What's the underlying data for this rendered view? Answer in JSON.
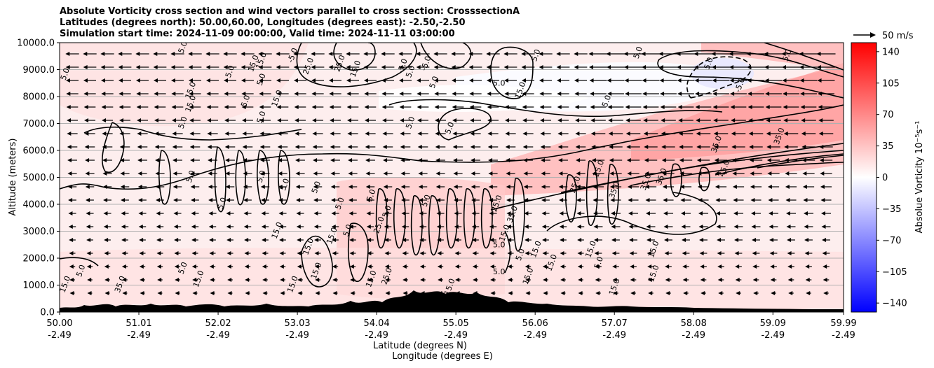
{
  "title_lines": [
    "Absolute Vorticity cross section and wind vectors parallel to cross section: CrosssectionA",
    "Latitudes (degrees north): 50.00,60.00, Longitudes (degrees east): -2.50,-2.50",
    "Simulation start time: 2024-11-09 00:00:00, Valid time: 2024-11-11 03:00:00"
  ],
  "quiver_key": {
    "label": "50 m/s",
    "speed": 50
  },
  "colors": {
    "positive": "#ff0000",
    "negative": "#0000ff",
    "neutral": "#ffffff",
    "contour": "#000000",
    "grid": "#b0b0b0",
    "terrain": "#000000"
  },
  "chart_data": {
    "type": "heatmap",
    "ylabel": "Altitude (meters)",
    "xlabel_lines": [
      "Latitude (degrees N)",
      "Longitude (degrees E)"
    ],
    "ylim": [
      0,
      10000
    ],
    "yticks": [
      "0.0",
      "1000.0",
      "2000.0",
      "3000.0",
      "4000.0",
      "5000.0",
      "6000.0",
      "7000.0",
      "8000.0",
      "9000.0",
      "10000.0"
    ],
    "ytick_values": [
      0,
      1000,
      2000,
      3000,
      4000,
      5000,
      6000,
      7000,
      8000,
      9000,
      10000
    ],
    "xlim": [
      50.0,
      59.99
    ],
    "xticks_lat": [
      "50.00",
      "51.01",
      "52.02",
      "53.03",
      "54.04",
      "55.05",
      "56.06",
      "57.07",
      "58.08",
      "59.09",
      "59.99"
    ],
    "xtick_values": [
      50.0,
      51.01,
      52.02,
      53.03,
      54.04,
      55.05,
      56.06,
      57.07,
      58.08,
      59.09,
      59.99
    ],
    "xticks_lon": [
      "-2.49",
      "-2.49",
      "-2.49",
      "-2.49",
      "-2.49",
      "-2.49",
      "-2.49",
      "-2.49",
      "-2.49",
      "-2.49",
      "-2.49"
    ],
    "grid": "horizontal",
    "colorbar": {
      "label": "Absolue Vorticity 10⁻⁵s⁻¹",
      "range": [
        -150,
        150
      ],
      "ticks": [
        "140",
        "105",
        "70",
        "35",
        "0",
        "−35",
        "−70",
        "−105",
        "−140"
      ],
      "tick_values": [
        140,
        105,
        70,
        35,
        0,
        -35,
        -70,
        -105,
        -140
      ]
    },
    "contour_labels": [
      {
        "text": "5.0",
        "lat": 51.6,
        "alt": 9800
      },
      {
        "text": "5.0",
        "lat": 50.1,
        "alt": 8800
      },
      {
        "text": "15.0",
        "lat": 51.7,
        "alt": 8200
      },
      {
        "text": "15.0",
        "lat": 51.7,
        "alt": 7700
      },
      {
        "text": "5.0",
        "lat": 52.2,
        "alt": 8900
      },
      {
        "text": "5.0",
        "lat": 52.4,
        "alt": 7800
      },
      {
        "text": "5.0",
        "lat": 51.6,
        "alt": 7000
      },
      {
        "text": "15.0",
        "lat": 52.5,
        "alt": 9200
      },
      {
        "text": "5.0",
        "lat": 52.6,
        "alt": 8600
      },
      {
        "text": "15.0",
        "lat": 52.8,
        "alt": 7900
      },
      {
        "text": "5.0",
        "lat": 52.6,
        "alt": 7200
      },
      {
        "text": "25.0",
        "lat": 53.2,
        "alt": 9100
      },
      {
        "text": "15.0",
        "lat": 53.8,
        "alt": 9000
      },
      {
        "text": "25.0",
        "lat": 53.6,
        "alt": 9200
      },
      {
        "text": "-5.0",
        "lat": 53.0,
        "alt": 9500
      },
      {
        "text": "15.0",
        "lat": 52.6,
        "alt": 9300
      },
      {
        "text": "-5.0",
        "lat": 54.4,
        "alt": 9100
      },
      {
        "text": "5.0",
        "lat": 54.5,
        "alt": 8900
      },
      {
        "text": "-5.0",
        "lat": 54.7,
        "alt": 9200
      },
      {
        "text": "5.0",
        "lat": 54.8,
        "alt": 8500
      },
      {
        "text": "5.0",
        "lat": 54.5,
        "alt": 7000
      },
      {
        "text": "5.0",
        "lat": 55.0,
        "alt": 6800
      },
      {
        "text": "5.0",
        "lat": 55.6,
        "alt": 8400
      },
      {
        "text": "15.0",
        "lat": 55.9,
        "alt": 8200
      },
      {
        "text": "5.0",
        "lat": 56.1,
        "alt": 9500
      },
      {
        "text": "5.0",
        "lat": 57.0,
        "alt": 7800
      },
      {
        "text": "5.0",
        "lat": 57.4,
        "alt": 9600
      },
      {
        "text": "5.0",
        "lat": 58.3,
        "alt": 9200
      },
      {
        "text": "-5.0",
        "lat": 58.7,
        "alt": 8400
      },
      {
        "text": "5.0",
        "lat": 59.3,
        "alt": 9500
      },
      {
        "text": "35.0",
        "lat": 58.4,
        "alt": 6200
      },
      {
        "text": "35.0",
        "lat": 59.2,
        "alt": 6500
      },
      {
        "text": "45.0",
        "lat": 58.5,
        "alt": 5300
      },
      {
        "text": "35.0",
        "lat": 57.7,
        "alt": 5000
      },
      {
        "text": "25.0",
        "lat": 56.9,
        "alt": 5300
      },
      {
        "text": "35.0",
        "lat": 57.5,
        "alt": 4800
      },
      {
        "text": "35.0",
        "lat": 57.1,
        "alt": 4500
      },
      {
        "text": "25.0",
        "lat": 56.6,
        "alt": 4700
      },
      {
        "text": "5.0",
        "lat": 52.6,
        "alt": 5000
      },
      {
        "text": "5.0",
        "lat": 51.7,
        "alt": 5000
      },
      {
        "text": "5.0",
        "lat": 52.1,
        "alt": 4000
      },
      {
        "text": "5.0",
        "lat": 52.9,
        "alt": 4700
      },
      {
        "text": "5.0",
        "lat": 53.3,
        "alt": 4600
      },
      {
        "text": "5.0",
        "lat": 53.6,
        "alt": 4000
      },
      {
        "text": "5.0",
        "lat": 54.0,
        "alt": 4300
      },
      {
        "text": "5.0",
        "lat": 53.7,
        "alt": 3000
      },
      {
        "text": "15.0",
        "lat": 52.8,
        "alt": 3000
      },
      {
        "text": "15.0",
        "lat": 53.2,
        "alt": 2400
      },
      {
        "text": "15.0",
        "lat": 53.5,
        "alt": 2800
      },
      {
        "text": "15.0",
        "lat": 53.3,
        "alt": 1500
      },
      {
        "text": "15.0",
        "lat": 53.0,
        "alt": 1000
      },
      {
        "text": "5.0",
        "lat": 54.2,
        "alt": 3700
      },
      {
        "text": "25.0",
        "lat": 54.1,
        "alt": 3200
      },
      {
        "text": "5.0",
        "lat": 54.7,
        "alt": 4100
      },
      {
        "text": "35.0",
        "lat": 55.8,
        "alt": 3600
      },
      {
        "text": "25.0",
        "lat": 55.6,
        "alt": 4000
      },
      {
        "text": "15.0",
        "lat": 55.7,
        "alt": 2900
      },
      {
        "text": "5.0",
        "lat": 55.6,
        "alt": 2400
      },
      {
        "text": "15.0",
        "lat": 56.1,
        "alt": 2300
      },
      {
        "text": "15.0",
        "lat": 56.3,
        "alt": 1800
      },
      {
        "text": "5.0",
        "lat": 55.9,
        "alt": 2100
      },
      {
        "text": "15.0",
        "lat": 56.8,
        "alt": 2300
      },
      {
        "text": "15.0",
        "lat": 57.6,
        "alt": 2300
      },
      {
        "text": "5.0",
        "lat": 51.6,
        "alt": 1600
      },
      {
        "text": "5.0",
        "lat": 50.3,
        "alt": 1500
      },
      {
        "text": "15.0",
        "lat": 50.1,
        "alt": 1000
      },
      {
        "text": "35.0",
        "lat": 50.8,
        "alt": 1000
      },
      {
        "text": "15.0",
        "lat": 51.8,
        "alt": 1200
      },
      {
        "text": "15.0",
        "lat": 54.0,
        "alt": 1200
      },
      {
        "text": "25.0",
        "lat": 54.2,
        "alt": 1300
      },
      {
        "text": "15.0",
        "lat": 55.0,
        "alt": 900
      },
      {
        "text": "15.0",
        "lat": 56.0,
        "alt": 1300
      },
      {
        "text": "15.0",
        "lat": 57.1,
        "alt": 900
      },
      {
        "text": "15.0",
        "lat": 57.6,
        "alt": 1400
      },
      {
        "text": "5.0",
        "lat": 55.6,
        "alt": 1400
      },
      {
        "text": "5.0",
        "lat": 56.9,
        "alt": 1800
      }
    ]
  }
}
